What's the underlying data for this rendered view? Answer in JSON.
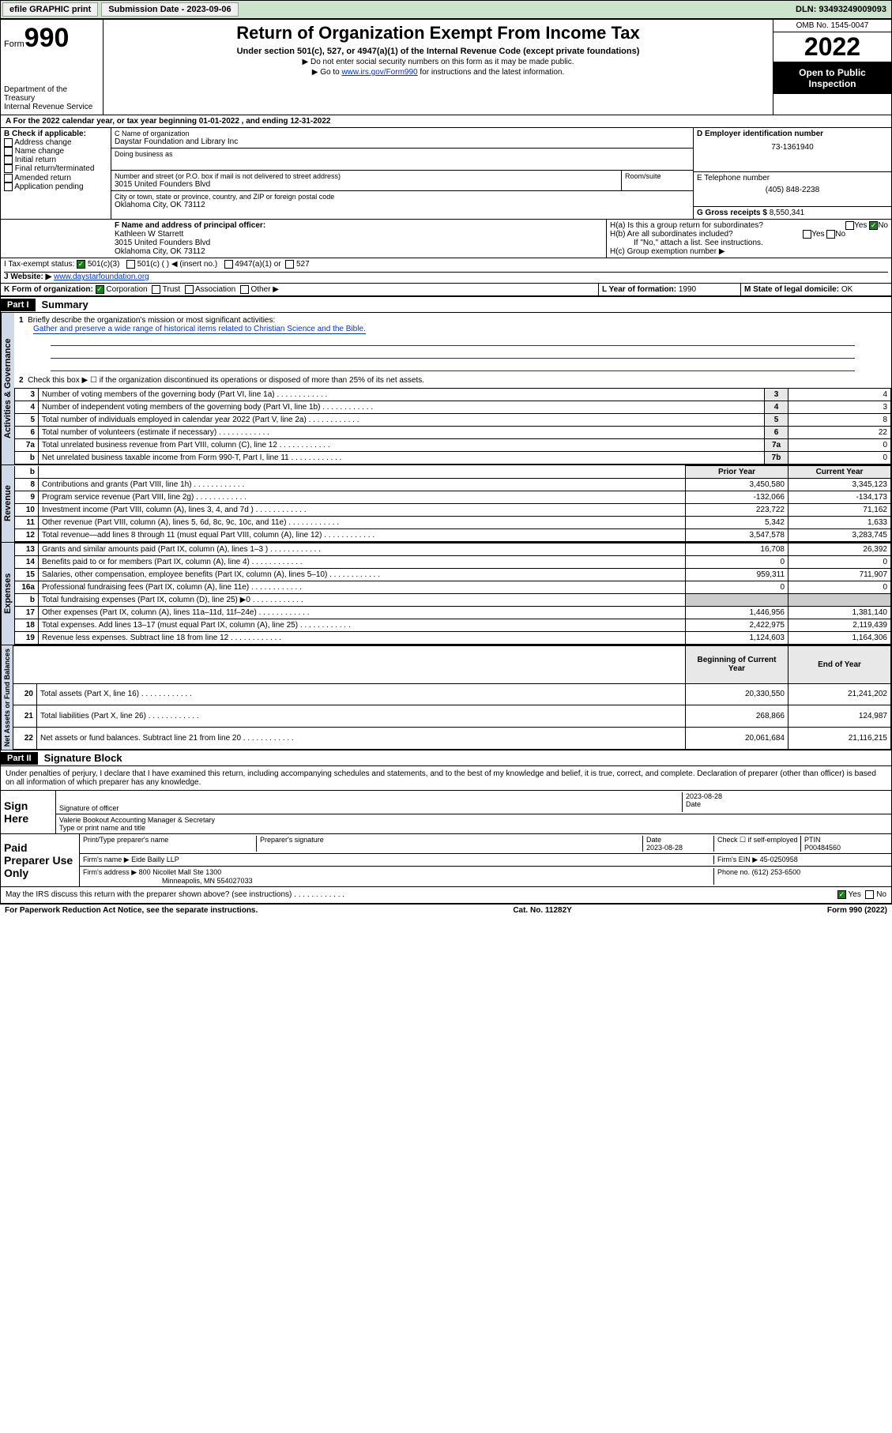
{
  "topbar": {
    "efile": "efile GRAPHIC print",
    "subdate_label": "Submission Date - ",
    "subdate": "2023-09-06",
    "dln_label": "DLN: ",
    "dln": "93493249009093"
  },
  "header": {
    "form_label": "Form",
    "form_num": "990",
    "dept": "Department of the Treasury",
    "irs": "Internal Revenue Service",
    "title": "Return of Organization Exempt From Income Tax",
    "sub": "Under section 501(c), 527, or 4947(a)(1) of the Internal Revenue Code (except private foundations)",
    "note1": "▶ Do not enter social security numbers on this form as it may be made public.",
    "note2_pre": "▶ Go to ",
    "note2_link": "www.irs.gov/Form990",
    "note2_post": " for instructions and the latest information.",
    "omb": "OMB No. 1545-0047",
    "year": "2022",
    "open_pub": "Open to Public Inspection"
  },
  "sectionA": {
    "line": "A For the 2022 calendar year, or tax year beginning 01-01-2022   , and ending 12-31-2022"
  },
  "boxB": {
    "label": "B Check if applicable:",
    "items": [
      "Address change",
      "Name change",
      "Initial return",
      "Final return/terminated",
      "Amended return",
      "Application pending"
    ]
  },
  "boxC": {
    "name_label": "C Name of organization",
    "name": "Daystar Foundation and Library Inc",
    "dba_label": "Doing business as",
    "street_label": "Number and street (or P.O. box if mail is not delivered to street address)",
    "room_label": "Room/suite",
    "street": "3015 United Founders Blvd",
    "city_label": "City or town, state or province, country, and ZIP or foreign postal code",
    "city": "Oklahoma City, OK  73112"
  },
  "boxD": {
    "label": "D Employer identification number",
    "ein": "73-1361940"
  },
  "boxE": {
    "label": "E Telephone number",
    "phone": "(405) 848-2238"
  },
  "boxG": {
    "label": "G Gross receipts $",
    "amount": "8,550,341"
  },
  "boxF": {
    "label": "F Name and address of principal officer:",
    "name": "Kathleen W Starrett",
    "addr1": "3015 United Founders Blvd",
    "addr2": "Oklahoma City, OK  73112"
  },
  "boxH": {
    "a": "H(a)  Is this a group return for subordinates?",
    "b": "H(b)  Are all subordinates included?",
    "b_note": "If \"No,\" attach a list. See instructions.",
    "c": "H(c)  Group exemption number ▶",
    "yes": "Yes",
    "no": "No"
  },
  "boxI": {
    "label": "I   Tax-exempt status:",
    "c3": "501(c)(3)",
    "c": "501(c) (  ) ◀ (insert no.)",
    "a1": "4947(a)(1) or",
    "s527": "527"
  },
  "boxJ": {
    "label": "J   Website: ▶",
    "url": "www.daystarfoundation.org"
  },
  "boxK": {
    "label": "K Form of organization:",
    "corp": "Corporation",
    "trust": "Trust",
    "assoc": "Association",
    "other": "Other ▶"
  },
  "boxL": {
    "label": "L Year of formation: ",
    "year": "1990"
  },
  "boxM": {
    "label": "M State of legal domicile: ",
    "state": "OK"
  },
  "part1": {
    "hdr": "Part I",
    "title": "Summary",
    "side_ag": "Activities & Governance",
    "side_rev": "Revenue",
    "side_exp": "Expenses",
    "side_na": "Net Assets or Fund Balances",
    "l1": "Briefly describe the organization's mission or most significant activities:",
    "mission": "Gather and preserve a wide range of historical items related to Christian Science and the Bible.",
    "l2": "Check this box ▶ ☐  if the organization discontinued its operations or disposed of more than 25% of its net assets.",
    "rows_ag": [
      {
        "n": "3",
        "d": "Number of voting members of the governing body (Part VI, line 1a)",
        "l": "3",
        "v": "4"
      },
      {
        "n": "4",
        "d": "Number of independent voting members of the governing body (Part VI, line 1b)",
        "l": "4",
        "v": "3"
      },
      {
        "n": "5",
        "d": "Total number of individuals employed in calendar year 2022 (Part V, line 2a)",
        "l": "5",
        "v": "8"
      },
      {
        "n": "6",
        "d": "Total number of volunteers (estimate if necessary)",
        "l": "6",
        "v": "22"
      },
      {
        "n": "7a",
        "d": "Total unrelated business revenue from Part VIII, column (C), line 12",
        "l": "7a",
        "v": "0"
      },
      {
        "n": "b",
        "d": "Net unrelated business taxable income from Form 990-T, Part I, line 11",
        "l": "7b",
        "v": "0"
      }
    ],
    "col_prior": "Prior Year",
    "col_curr": "Current Year",
    "rows_rev": [
      {
        "n": "8",
        "d": "Contributions and grants (Part VIII, line 1h)",
        "py": "3,450,580",
        "cy": "3,345,123"
      },
      {
        "n": "9",
        "d": "Program service revenue (Part VIII, line 2g)",
        "py": "-132,066",
        "cy": "-134,173"
      },
      {
        "n": "10",
        "d": "Investment income (Part VIII, column (A), lines 3, 4, and 7d )",
        "py": "223,722",
        "cy": "71,162"
      },
      {
        "n": "11",
        "d": "Other revenue (Part VIII, column (A), lines 5, 6d, 8c, 9c, 10c, and 11e)",
        "py": "5,342",
        "cy": "1,633"
      },
      {
        "n": "12",
        "d": "Total revenue—add lines 8 through 11 (must equal Part VIII, column (A), line 12)",
        "py": "3,547,578",
        "cy": "3,283,745"
      }
    ],
    "rows_exp": [
      {
        "n": "13",
        "d": "Grants and similar amounts paid (Part IX, column (A), lines 1–3 )",
        "py": "16,708",
        "cy": "26,392"
      },
      {
        "n": "14",
        "d": "Benefits paid to or for members (Part IX, column (A), line 4)",
        "py": "0",
        "cy": "0"
      },
      {
        "n": "15",
        "d": "Salaries, other compensation, employee benefits (Part IX, column (A), lines 5–10)",
        "py": "959,311",
        "cy": "711,907"
      },
      {
        "n": "16a",
        "d": "Professional fundraising fees (Part IX, column (A), line 11e)",
        "py": "0",
        "cy": "0"
      },
      {
        "n": "b",
        "d": "Total fundraising expenses (Part IX, column (D), line 25) ▶0",
        "py": "",
        "cy": ""
      },
      {
        "n": "17",
        "d": "Other expenses (Part IX, column (A), lines 11a–11d, 11f–24e)",
        "py": "1,446,956",
        "cy": "1,381,140"
      },
      {
        "n": "18",
        "d": "Total expenses. Add lines 13–17 (must equal Part IX, column (A), line 25)",
        "py": "2,422,975",
        "cy": "2,119,439"
      },
      {
        "n": "19",
        "d": "Revenue less expenses. Subtract line 18 from line 12",
        "py": "1,124,603",
        "cy": "1,164,306"
      }
    ],
    "col_beg": "Beginning of Current Year",
    "col_end": "End of Year",
    "rows_na": [
      {
        "n": "20",
        "d": "Total assets (Part X, line 16)",
        "py": "20,330,550",
        "cy": "21,241,202"
      },
      {
        "n": "21",
        "d": "Total liabilities (Part X, line 26)",
        "py": "268,866",
        "cy": "124,987"
      },
      {
        "n": "22",
        "d": "Net assets or fund balances. Subtract line 21 from line 20",
        "py": "20,061,684",
        "cy": "21,116,215"
      }
    ]
  },
  "part2": {
    "hdr": "Part II",
    "title": "Signature Block",
    "decl": "Under penalties of perjury, I declare that I have examined this return, including accompanying schedules and statements, and to the best of my knowledge and belief, it is true, correct, and complete. Declaration of preparer (other than officer) is based on all information of which preparer has any knowledge.",
    "sign_here": "Sign Here",
    "sig_officer": "Signature of officer",
    "sig_date": "2023-08-28",
    "date_label": "Date",
    "officer_name": "Valerie Bookout  Accounting Manager & Secretary",
    "type_name": "Type or print name and title",
    "paid_prep": "Paid Preparer Use Only",
    "col_print": "Print/Type preparer's name",
    "col_sig": "Preparer's signature",
    "col_date": "Date",
    "prep_date": "2023-08-28",
    "col_check": "Check ☐ if self-employed",
    "col_ptin": "PTIN",
    "ptin": "P00484560",
    "firm_name_l": "Firm's name    ▶",
    "firm_name": "Eide Bailly LLP",
    "firm_ein_l": "Firm's EIN ▶",
    "firm_ein": "45-0250958",
    "firm_addr_l": "Firm's address ▶",
    "firm_addr1": "800 Nicollet Mall Ste 1300",
    "firm_addr2": "Minneapolis, MN  554027033",
    "phone_l": "Phone no.",
    "phone": "(612) 253-6500",
    "discuss": "May the IRS discuss this return with the preparer shown above? (see instructions)",
    "yes": "Yes",
    "no": "No"
  },
  "footer": {
    "pra": "For Paperwork Reduction Act Notice, see the separate instructions.",
    "cat": "Cat. No. 11282Y",
    "form": "Form 990 (2022)"
  }
}
